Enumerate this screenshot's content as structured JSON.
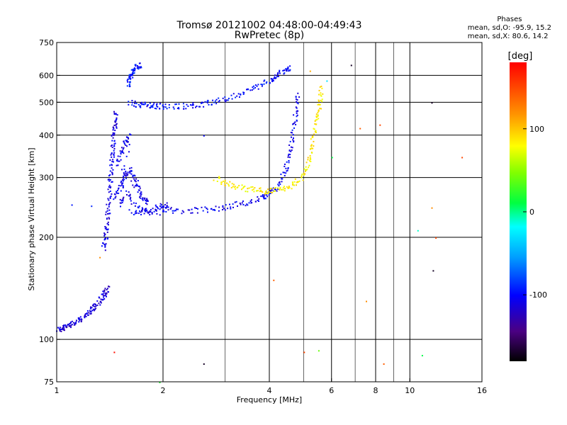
{
  "title_line1": "Tromsø 20121002 04:48:00-04:49:43",
  "title_line2": "RwPretec (8p)",
  "phases": {
    "label": "Phases",
    "line_o": "mean, sd,O: -95.9, 15.2",
    "line_x": "mean, sd,X:  80.6, 14.2"
  },
  "chart_data": {
    "type": "scatter",
    "xlabel": "Frequency [MHz]",
    "ylabel": "Stationary phase Virtual Height [km]",
    "x_scale": "log",
    "y_scale": "log",
    "xlim": [
      1,
      16
    ],
    "ylim": [
      75,
      750
    ],
    "x_ticks": [
      1,
      2,
      4,
      6,
      8,
      10,
      16
    ],
    "x_tick_labels": [
      "1",
      "2",
      "4",
      "6",
      "8",
      "10",
      "16"
    ],
    "y_ticks": [
      75,
      100,
      200,
      300,
      400,
      500,
      600,
      750
    ],
    "y_tick_labels": [
      "75",
      "100",
      "200",
      "300",
      "400",
      "500",
      "600",
      "750"
    ],
    "grid_x": [
      2,
      4,
      6,
      8,
      10
    ],
    "grid_y": [
      100,
      200,
      300,
      400,
      500,
      600
    ],
    "minor_x": [
      3,
      5,
      7,
      9
    ],
    "colorbar": {
      "label": "[deg]",
      "range": [
        -180,
        180
      ],
      "ticks": [
        100,
        0,
        -100
      ],
      "tick_labels": [
        "100",
        "0",
        "-100"
      ]
    },
    "traces": [
      {
        "name": "o-low-start",
        "phase": -115,
        "points": [
          [
            1.0,
            108
          ],
          [
            1.03,
            107
          ],
          [
            1.06,
            110
          ],
          [
            1.1,
            112
          ],
          [
            1.14,
            113
          ],
          [
            1.18,
            116
          ],
          [
            1.22,
            120
          ],
          [
            1.26,
            124
          ],
          [
            1.3,
            128
          ],
          [
            1.34,
            133
          ],
          [
            1.37,
            138
          ],
          [
            1.4,
            142
          ]
        ]
      },
      {
        "name": "o-rise",
        "phase": -110,
        "points": [
          [
            1.35,
            185
          ],
          [
            1.37,
            200
          ],
          [
            1.38,
            215
          ],
          [
            1.39,
            235
          ],
          [
            1.4,
            260
          ],
          [
            1.41,
            290
          ],
          [
            1.42,
            320
          ],
          [
            1.43,
            350
          ],
          [
            1.44,
            380
          ],
          [
            1.45,
            410
          ],
          [
            1.46,
            440
          ],
          [
            1.47,
            470
          ]
        ]
      },
      {
        "name": "o-cusp-cloud",
        "phase": -108,
        "points": [
          [
            1.45,
            260
          ],
          [
            1.5,
            280
          ],
          [
            1.55,
            300
          ],
          [
            1.6,
            320
          ],
          [
            1.65,
            300
          ],
          [
            1.7,
            280
          ],
          [
            1.75,
            260
          ],
          [
            1.8,
            255
          ],
          [
            1.48,
            330
          ],
          [
            1.52,
            360
          ],
          [
            1.56,
            380
          ],
          [
            1.6,
            400
          ],
          [
            1.5,
            250
          ],
          [
            1.58,
            270
          ],
          [
            1.68,
            245
          ],
          [
            1.78,
            240
          ],
          [
            1.9,
            245
          ],
          [
            2.0,
            250
          ],
          [
            2.1,
            248
          ]
        ]
      },
      {
        "name": "o-base",
        "phase": -105,
        "points": [
          [
            1.6,
            238
          ],
          [
            1.8,
            238
          ],
          [
            2.0,
            238
          ],
          [
            2.3,
            240
          ],
          [
            2.6,
            242
          ],
          [
            2.9,
            245
          ],
          [
            3.2,
            250
          ],
          [
            3.5,
            255
          ],
          [
            3.8,
            262
          ],
          [
            4.0,
            270
          ],
          [
            4.2,
            285
          ],
          [
            4.4,
            310
          ],
          [
            4.5,
            340
          ],
          [
            4.6,
            380
          ],
          [
            4.7,
            430
          ],
          [
            4.75,
            480
          ],
          [
            4.8,
            530
          ]
        ]
      },
      {
        "name": "o-upper",
        "phase": -100,
        "points": [
          [
            1.6,
            500
          ],
          [
            1.7,
            495
          ],
          [
            1.8,
            492
          ],
          [
            1.9,
            490
          ],
          [
            2.0,
            488
          ],
          [
            2.2,
            488
          ],
          [
            2.4,
            490
          ],
          [
            2.6,
            495
          ],
          [
            2.8,
            505
          ],
          [
            3.1,
            520
          ],
          [
            3.4,
            540
          ],
          [
            3.7,
            560
          ],
          [
            4.0,
            585
          ],
          [
            4.2,
            605
          ],
          [
            4.4,
            625
          ],
          [
            4.6,
            640
          ]
        ]
      },
      {
        "name": "o-top-hook",
        "phase": -95,
        "points": [
          [
            1.58,
            560
          ],
          [
            1.6,
            590
          ],
          [
            1.62,
            610
          ],
          [
            1.65,
            625
          ],
          [
            1.68,
            640
          ],
          [
            1.72,
            650
          ]
        ]
      },
      {
        "name": "x-trace",
        "phase": 85,
        "points": [
          [
            2.8,
            300
          ],
          [
            3.0,
            290
          ],
          [
            3.2,
            283
          ],
          [
            3.5,
            278
          ],
          [
            3.8,
            275
          ],
          [
            4.0,
            275
          ],
          [
            4.3,
            278
          ],
          [
            4.6,
            285
          ],
          [
            4.9,
            300
          ],
          [
            5.1,
            320
          ],
          [
            5.2,
            350
          ],
          [
            5.3,
            390
          ],
          [
            5.4,
            430
          ],
          [
            5.5,
            470
          ],
          [
            5.55,
            510
          ],
          [
            5.6,
            560
          ]
        ]
      }
    ],
    "isolated_points": [
      {
        "x": 1.1,
        "y": 250,
        "phase": -95
      },
      {
        "x": 1.25,
        "y": 248,
        "phase": -90
      },
      {
        "x": 1.32,
        "y": 175,
        "phase": 120
      },
      {
        "x": 1.45,
        "y": 92,
        "phase": 175
      },
      {
        "x": 1.95,
        "y": 75,
        "phase": 20
      },
      {
        "x": 2.6,
        "y": 400,
        "phase": -100
      },
      {
        "x": 2.6,
        "y": 85,
        "phase": -170
      },
      {
        "x": 5.2,
        "y": 620,
        "phase": 110
      },
      {
        "x": 5.8,
        "y": 580,
        "phase": -30
      },
      {
        "x": 6.0,
        "y": 345,
        "phase": 10
      },
      {
        "x": 5.0,
        "y": 92,
        "phase": 150
      },
      {
        "x": 5.5,
        "y": 93,
        "phase": 40
      },
      {
        "x": 4.1,
        "y": 150,
        "phase": 140
      },
      {
        "x": 6.8,
        "y": 645,
        "phase": -170
      },
      {
        "x": 7.2,
        "y": 420,
        "phase": 140
      },
      {
        "x": 7.5,
        "y": 130,
        "phase": 120
      },
      {
        "x": 8.2,
        "y": 430,
        "phase": 150
      },
      {
        "x": 8.4,
        "y": 85,
        "phase": 140
      },
      {
        "x": 10.5,
        "y": 210,
        "phase": -10
      },
      {
        "x": 10.8,
        "y": 90,
        "phase": 10
      },
      {
        "x": 11.5,
        "y": 500,
        "phase": -170
      },
      {
        "x": 11.8,
        "y": 200,
        "phase": 150
      },
      {
        "x": 11.6,
        "y": 160,
        "phase": -170
      },
      {
        "x": 14.0,
        "y": 345,
        "phase": 150
      },
      {
        "x": 11.5,
        "y": 245,
        "phase": 120
      }
    ]
  }
}
